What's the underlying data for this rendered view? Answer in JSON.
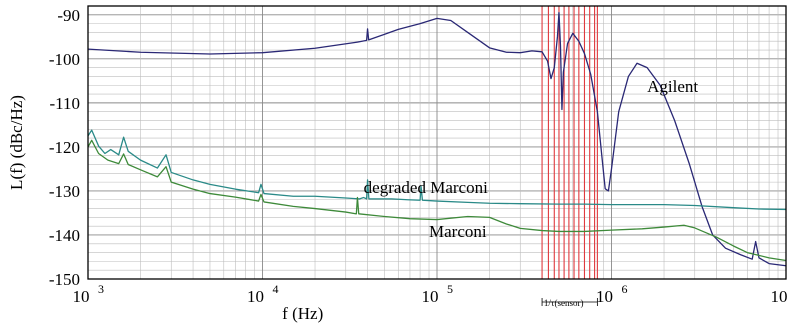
{
  "chart_data": {
    "type": "line",
    "xlabel": "f (Hz)",
    "ylabel": "L(f) (dBc/Hz)",
    "xscale": "log",
    "xlim": [
      1000,
      10000000
    ],
    "ylim": [
      -150,
      -88
    ],
    "x_ticks": [
      {
        "base": "10",
        "exp": "3",
        "value": 1000
      },
      {
        "base": "10",
        "exp": "4",
        "value": 10000
      },
      {
        "base": "10",
        "exp": "5",
        "value": 100000
      },
      {
        "base": "10",
        "exp": "6",
        "value": 1000000
      },
      {
        "base": "10",
        "exp": "7",
        "value": 10000000
      }
    ],
    "y_ticks": [
      "-90",
      "-100",
      "-110",
      "-120",
      "-130",
      "-140",
      "-150"
    ],
    "grid": true,
    "annotations": [
      {
        "text": "Agilent",
        "x": 1600000,
        "y": -107.5
      },
      {
        "text": "degraded Marconi",
        "x": 38000,
        "y": -130.5
      },
      {
        "text": "Marconi",
        "x": 90000,
        "y": -140.5
      }
    ],
    "sensor_band": {
      "label": "1/τ(sensor)",
      "from": 400000,
      "to": 830000,
      "lines": [
        400000,
        435000,
        470000,
        500000,
        535000,
        570000,
        610000,
        650000,
        700000,
        750000,
        800000,
        830000
      ],
      "color": "#e0393e"
    },
    "series": [
      {
        "name": "Agilent",
        "color": "#2a2875",
        "points": [
          [
            1000,
            -97.8
          ],
          [
            2000,
            -98.5
          ],
          [
            5000,
            -98.9
          ],
          [
            10000,
            -98.6
          ],
          [
            20000,
            -97.6
          ],
          [
            35000,
            -96.2
          ],
          [
            39500,
            -95.8
          ],
          [
            40000,
            -93.2
          ],
          [
            40600,
            -95.7
          ],
          [
            60000,
            -93.3
          ],
          [
            80000,
            -92.0
          ],
          [
            100000,
            -90.8
          ],
          [
            120000,
            -91.3
          ],
          [
            150000,
            -94.0
          ],
          [
            200000,
            -97.5
          ],
          [
            250000,
            -98.5
          ],
          [
            300000,
            -98.6
          ],
          [
            350000,
            -98.2
          ],
          [
            400000,
            -98.4
          ],
          [
            430000,
            -100.5
          ],
          [
            450000,
            -104.5
          ],
          [
            470000,
            -102.0
          ],
          [
            490000,
            -95.0
          ],
          [
            500000,
            -89.5
          ],
          [
            510000,
            -97.0
          ],
          [
            520000,
            -111.5
          ],
          [
            530000,
            -103.0
          ],
          [
            560000,
            -96.5
          ],
          [
            600000,
            -94.2
          ],
          [
            650000,
            -96.0
          ],
          [
            700000,
            -98.8
          ],
          [
            760000,
            -103.5
          ],
          [
            830000,
            -112.0
          ],
          [
            880000,
            -122.0
          ],
          [
            920000,
            -129.5
          ],
          [
            960000,
            -130.0
          ],
          [
            1000000,
            -125.0
          ],
          [
            1100000,
            -112.0
          ],
          [
            1250000,
            -104.0
          ],
          [
            1400000,
            -101.0
          ],
          [
            1600000,
            -102.0
          ],
          [
            1900000,
            -106.0
          ],
          [
            2300000,
            -114.0
          ],
          [
            2800000,
            -124.0
          ],
          [
            3300000,
            -133.5
          ],
          [
            3800000,
            -140.0
          ],
          [
            4500000,
            -143.0
          ],
          [
            5500000,
            -144.5
          ],
          [
            6400000,
            -145.5
          ],
          [
            6700000,
            -141.5
          ],
          [
            7000000,
            -145.2
          ],
          [
            8000000,
            -146.5
          ],
          [
            10000000,
            -147.0
          ]
        ]
      },
      {
        "name": "degraded Marconi",
        "color": "#2a8a88",
        "points": [
          [
            1000,
            -117.5
          ],
          [
            1050,
            -116.2
          ],
          [
            1150,
            -119.8
          ],
          [
            1250,
            -121.5
          ],
          [
            1350,
            -120.6
          ],
          [
            1500,
            -121.8
          ],
          [
            1600,
            -117.8
          ],
          [
            1700,
            -121.0
          ],
          [
            2000,
            -123.0
          ],
          [
            2500,
            -124.8
          ],
          [
            2800,
            -121.8
          ],
          [
            3000,
            -125.8
          ],
          [
            4000,
            -127.5
          ],
          [
            5000,
            -128.5
          ],
          [
            7000,
            -129.6
          ],
          [
            9500,
            -130.4
          ],
          [
            9800,
            -128.5
          ],
          [
            10200,
            -130.6
          ],
          [
            15000,
            -131.2
          ],
          [
            20000,
            -131.2
          ],
          [
            30000,
            -131.6
          ],
          [
            36000,
            -131.8
          ],
          [
            38000,
            -131.5
          ],
          [
            39500,
            -131.8
          ],
          [
            40000,
            -127.5
          ],
          [
            40700,
            -131.8
          ],
          [
            55000,
            -131.8
          ],
          [
            68000,
            -132.0
          ],
          [
            80000,
            -132.1
          ],
          [
            81000,
            -129.0
          ],
          [
            82500,
            -132.1
          ],
          [
            100000,
            -132.3
          ],
          [
            150000,
            -132.6
          ],
          [
            200000,
            -132.8
          ],
          [
            300000,
            -132.9
          ],
          [
            500000,
            -133.0
          ],
          [
            700000,
            -133.0
          ],
          [
            1000000,
            -133.1
          ],
          [
            2000000,
            -133.1
          ],
          [
            3000000,
            -133.3
          ],
          [
            5000000,
            -133.8
          ],
          [
            7000000,
            -134.1
          ],
          [
            10000000,
            -134.2
          ]
        ]
      },
      {
        "name": "Marconi",
        "color": "#3e8a3a",
        "points": [
          [
            1000,
            -120.0
          ],
          [
            1050,
            -118.5
          ],
          [
            1150,
            -121.5
          ],
          [
            1300,
            -123.0
          ],
          [
            1500,
            -123.8
          ],
          [
            1600,
            -121.6
          ],
          [
            1700,
            -124.0
          ],
          [
            2000,
            -125.2
          ],
          [
            2500,
            -126.8
          ],
          [
            2800,
            -124.5
          ],
          [
            3000,
            -128.0
          ],
          [
            4000,
            -129.6
          ],
          [
            5000,
            -130.6
          ],
          [
            7000,
            -131.4
          ],
          [
            9500,
            -132.3
          ],
          [
            9800,
            -130.8
          ],
          [
            10200,
            -132.5
          ],
          [
            15000,
            -133.5
          ],
          [
            20000,
            -134.0
          ],
          [
            30000,
            -134.8
          ],
          [
            34500,
            -135.2
          ],
          [
            35000,
            -131.5
          ],
          [
            35600,
            -135.2
          ],
          [
            50000,
            -135.8
          ],
          [
            70000,
            -136.3
          ],
          [
            100000,
            -136.5
          ],
          [
            150000,
            -135.8
          ],
          [
            200000,
            -136.0
          ],
          [
            250000,
            -137.5
          ],
          [
            300000,
            -138.5
          ],
          [
            400000,
            -139.0
          ],
          [
            500000,
            -139.2
          ],
          [
            700000,
            -139.2
          ],
          [
            1000000,
            -138.9
          ],
          [
            1500000,
            -138.6
          ],
          [
            2000000,
            -138.2
          ],
          [
            2600000,
            -137.8
          ],
          [
            3000000,
            -138.4
          ],
          [
            4000000,
            -140.5
          ],
          [
            5000000,
            -142.5
          ],
          [
            6000000,
            -144.0
          ],
          [
            8000000,
            -145.2
          ],
          [
            10000000,
            -145.8
          ]
        ]
      }
    ]
  }
}
